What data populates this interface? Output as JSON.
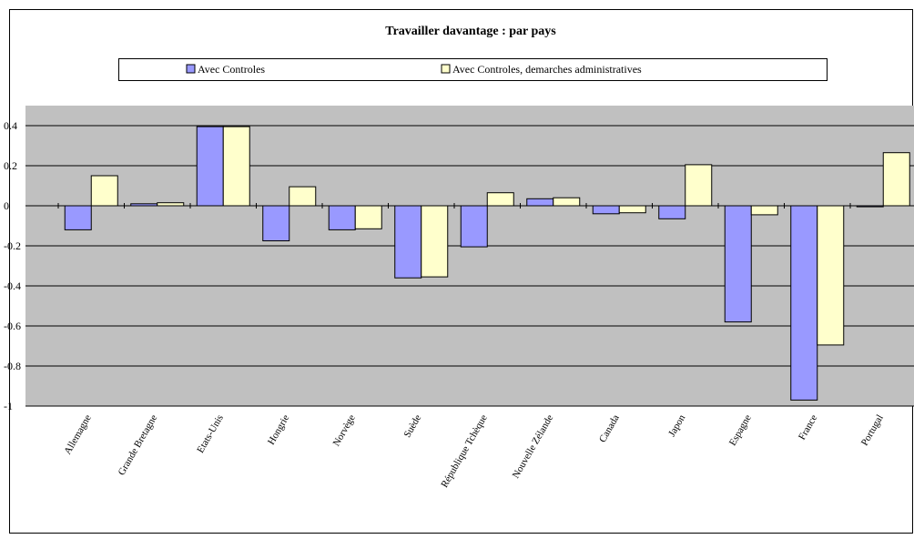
{
  "chart_data": {
    "type": "bar",
    "title": "Travailler davantage : par pays",
    "categories": [
      "Allemagne",
      "Grande Bretagne",
      "Etats-Unis",
      "Hongrie",
      "Norvège",
      "Suède",
      "République Tchèque",
      "Nouvelle Zélande",
      "Canada",
      "Japon",
      "Espagne",
      "France",
      "Portugal"
    ],
    "series": [
      {
        "name": "Avec Controles",
        "color": "#9999ff",
        "values": [
          -0.12,
          0.01,
          0.395,
          -0.175,
          -0.12,
          -0.36,
          -0.205,
          0.035,
          -0.04,
          -0.065,
          -0.58,
          -0.97,
          -0.005
        ]
      },
      {
        "name": "Avec Controles, demarches administratives",
        "color": "#ffffcc",
        "values": [
          0.15,
          0.015,
          0.395,
          0.095,
          -0.115,
          -0.355,
          0.065,
          0.04,
          -0.035,
          0.205,
          -0.045,
          -0.695,
          0.265
        ]
      }
    ],
    "ylim": [
      -1,
      0.5
    ],
    "yticks": [
      -1,
      -0.8,
      -0.6,
      -0.4,
      -0.2,
      0,
      0.2,
      0.4
    ],
    "grid": true,
    "legend": "top"
  }
}
